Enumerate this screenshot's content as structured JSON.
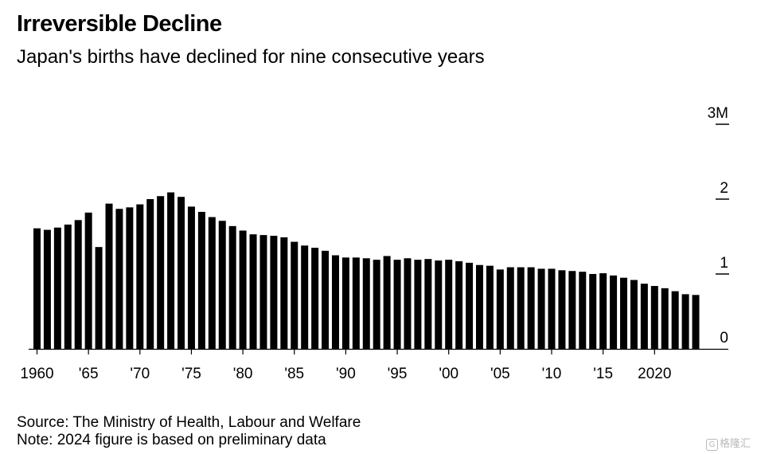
{
  "chart_data": {
    "type": "bar",
    "title": "Irreversible Decline",
    "subtitle": "Japan's births have declined for nine consecutive years",
    "xlabel": "",
    "ylabel": "",
    "unit": "millions",
    "ylim": [
      0,
      3
    ],
    "yticks": [
      {
        "value": 0,
        "label": "0"
      },
      {
        "value": 1,
        "label": "1"
      },
      {
        "value": 2,
        "label": "2"
      },
      {
        "value": 3,
        "label": "3M"
      }
    ],
    "xticks": [
      {
        "year": 1960,
        "label": "1960"
      },
      {
        "year": 1965,
        "label": "'65"
      },
      {
        "year": 1970,
        "label": "'70"
      },
      {
        "year": 1975,
        "label": "'75"
      },
      {
        "year": 1980,
        "label": "'80"
      },
      {
        "year": 1985,
        "label": "'85"
      },
      {
        "year": 1990,
        "label": "'90"
      },
      {
        "year": 1995,
        "label": "'95"
      },
      {
        "year": 2000,
        "label": "'00"
      },
      {
        "year": 2005,
        "label": "'05"
      },
      {
        "year": 2010,
        "label": "'10"
      },
      {
        "year": 2015,
        "label": "'15"
      },
      {
        "year": 2020,
        "label": "2020"
      }
    ],
    "categories": [
      1960,
      1961,
      1962,
      1963,
      1964,
      1965,
      1966,
      1967,
      1968,
      1969,
      1970,
      1971,
      1972,
      1973,
      1974,
      1975,
      1976,
      1977,
      1978,
      1979,
      1980,
      1981,
      1982,
      1983,
      1984,
      1985,
      1986,
      1987,
      1988,
      1989,
      1990,
      1991,
      1992,
      1993,
      1994,
      1995,
      1996,
      1997,
      1998,
      1999,
      2000,
      2001,
      2002,
      2003,
      2004,
      2005,
      2006,
      2007,
      2008,
      2009,
      2010,
      2011,
      2012,
      2013,
      2014,
      2015,
      2016,
      2017,
      2018,
      2019,
      2020,
      2021,
      2022,
      2023,
      2024
    ],
    "values": [
      1.61,
      1.59,
      1.62,
      1.66,
      1.72,
      1.82,
      1.36,
      1.94,
      1.87,
      1.89,
      1.93,
      2.0,
      2.04,
      2.09,
      2.03,
      1.9,
      1.83,
      1.76,
      1.71,
      1.64,
      1.58,
      1.53,
      1.52,
      1.51,
      1.49,
      1.43,
      1.38,
      1.35,
      1.31,
      1.25,
      1.22,
      1.22,
      1.21,
      1.19,
      1.24,
      1.19,
      1.21,
      1.19,
      1.2,
      1.18,
      1.19,
      1.17,
      1.15,
      1.12,
      1.11,
      1.06,
      1.09,
      1.09,
      1.09,
      1.07,
      1.07,
      1.05,
      1.04,
      1.03,
      1.0,
      1.01,
      0.98,
      0.95,
      0.92,
      0.87,
      0.84,
      0.81,
      0.77,
      0.73,
      0.72
    ]
  },
  "footer": {
    "source": "Source: The Ministry of Health, Labour and Welfare",
    "note": "Note: 2024 figure is based on preliminary data"
  },
  "watermark": "格隆汇",
  "colors": {
    "bar": "#000000",
    "axis": "#000000",
    "background": "#ffffff"
  }
}
